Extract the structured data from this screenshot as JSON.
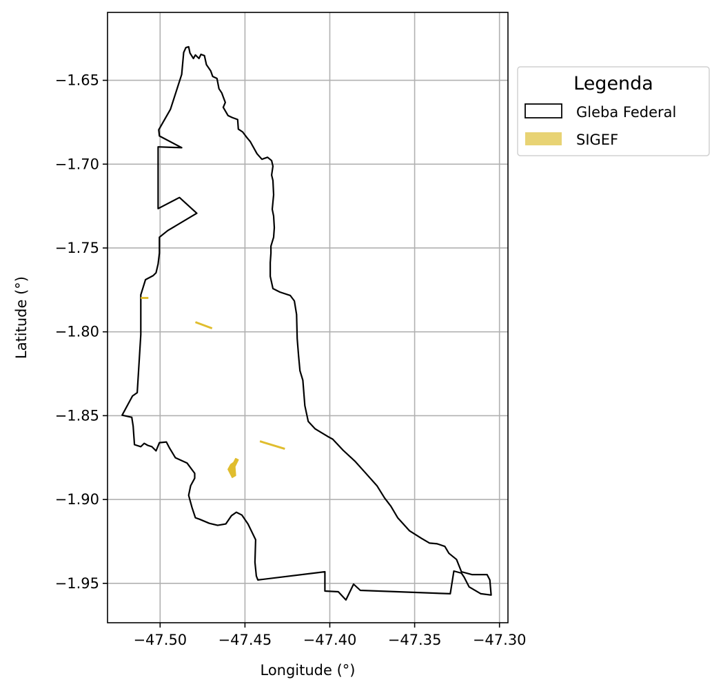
{
  "chart_data": {
    "type": "map",
    "xlabel": "Longitude (°)",
    "ylabel": "Latitude (°)",
    "xlim": [
      -47.531,
      -47.295
    ],
    "ylim": [
      -1.9735,
      -1.6095
    ],
    "xticks": [
      -47.5,
      -47.45,
      -47.4,
      -47.35,
      -47.3
    ],
    "xtick_labels": [
      "−47.50",
      "−47.45",
      "−47.40",
      "−47.35",
      "−47.30"
    ],
    "yticks": [
      -1.65,
      -1.7,
      -1.75,
      -1.8,
      -1.85,
      -1.9,
      -1.95
    ],
    "ytick_labels": [
      "−1.65",
      "−1.70",
      "−1.75",
      "−1.80",
      "−1.85",
      "−1.90",
      "−1.95"
    ],
    "grid": true,
    "legend": {
      "title": "Legenda",
      "placement": "outside-upper-right",
      "entries": [
        {
          "label": "Gleba Federal",
          "style": "outline",
          "color": "#000000"
        },
        {
          "label": "SIGEF",
          "style": "fill",
          "color": "#e8d374"
        }
      ]
    },
    "series": [
      {
        "name": "Gleba Federal",
        "kind": "polygon-outline",
        "color": "#000000",
        "points": [
          [
            -47.4861,
            -1.6334
          ],
          [
            -47.4848,
            -1.6305
          ],
          [
            -47.4832,
            -1.63
          ],
          [
            -47.4824,
            -1.6337
          ],
          [
            -47.4804,
            -1.637
          ],
          [
            -47.4792,
            -1.6349
          ],
          [
            -47.4771,
            -1.637
          ],
          [
            -47.4759,
            -1.6345
          ],
          [
            -47.4739,
            -1.6353
          ],
          [
            -47.4727,
            -1.6407
          ],
          [
            -47.4702,
            -1.6444
          ],
          [
            -47.469,
            -1.6477
          ],
          [
            -47.4665,
            -1.6489
          ],
          [
            -47.4653,
            -1.655
          ],
          [
            -47.4637,
            -1.6575
          ],
          [
            -47.4628,
            -1.6599
          ],
          [
            -47.4616,
            -1.6632
          ],
          [
            -47.4628,
            -1.6661
          ],
          [
            -47.46,
            -1.671
          ],
          [
            -47.4575,
            -1.6722
          ],
          [
            -47.4543,
            -1.6734
          ],
          [
            -47.4539,
            -1.6791
          ],
          [
            -47.4514,
            -1.6808
          ],
          [
            -47.449,
            -1.684
          ],
          [
            -47.4469,
            -1.6865
          ],
          [
            -47.4429,
            -1.6938
          ],
          [
            -47.44,
            -1.6971
          ],
          [
            -47.4367,
            -1.6959
          ],
          [
            -47.4343,
            -1.6979
          ],
          [
            -47.4335,
            -1.7012
          ],
          [
            -47.4343,
            -1.7065
          ],
          [
            -47.4335,
            -1.7098
          ],
          [
            -47.4331,
            -1.7183
          ],
          [
            -47.4339,
            -1.7269
          ],
          [
            -47.4331,
            -1.731
          ],
          [
            -47.4327,
            -1.7379
          ],
          [
            -47.4331,
            -1.7436
          ],
          [
            -47.4347,
            -1.7489
          ],
          [
            -47.4347,
            -1.753
          ],
          [
            -47.4351,
            -1.7587
          ],
          [
            -47.4351,
            -1.7669
          ],
          [
            -47.4335,
            -1.7742
          ],
          [
            -47.4294,
            -1.7763
          ],
          [
            -47.4233,
            -1.7783
          ],
          [
            -47.4209,
            -1.7816
          ],
          [
            -47.4196,
            -1.7897
          ],
          [
            -47.4192,
            -1.804
          ],
          [
            -47.4184,
            -1.8143
          ],
          [
            -47.4176,
            -1.8232
          ],
          [
            -47.4159,
            -1.8289
          ],
          [
            -47.4147,
            -1.844
          ],
          [
            -47.4127,
            -1.8534
          ],
          [
            -47.4086,
            -1.8579
          ],
          [
            -47.4045,
            -1.8604
          ],
          [
            -47.4012,
            -1.8624
          ],
          [
            -47.3983,
            -1.864
          ],
          [
            -47.3922,
            -1.8706
          ],
          [
            -47.3852,
            -1.8771
          ],
          [
            -47.3791,
            -1.884
          ],
          [
            -47.3722,
            -1.8918
          ],
          [
            -47.3677,
            -1.8991
          ],
          [
            -47.364,
            -1.904
          ],
          [
            -47.36,
            -1.9109
          ],
          [
            -47.353,
            -1.9187
          ],
          [
            -47.3461,
            -1.9231
          ],
          [
            -47.3412,
            -1.926
          ],
          [
            -47.3367,
            -1.9264
          ],
          [
            -47.3322,
            -1.928
          ],
          [
            -47.3298,
            -1.9321
          ],
          [
            -47.3253,
            -1.9358
          ],
          [
            -47.3224,
            -1.9431
          ],
          [
            -47.3163,
            -1.9448
          ],
          [
            -47.3073,
            -1.9448
          ],
          [
            -47.3057,
            -1.948
          ],
          [
            -47.3049,
            -1.957
          ],
          [
            -47.311,
            -1.9562
          ],
          [
            -47.3179,
            -1.9521
          ],
          [
            -47.3208,
            -1.9464
          ],
          [
            -47.3224,
            -1.9439
          ],
          [
            -47.3269,
            -1.9427
          ],
          [
            -47.329,
            -1.9562
          ],
          [
            -47.382,
            -1.9542
          ],
          [
            -47.386,
            -1.9505
          ],
          [
            -47.3905,
            -1.9599
          ],
          [
            -47.395,
            -1.955
          ],
          [
            -47.4029,
            -1.9546
          ],
          [
            -47.4029,
            -1.9431
          ],
          [
            -47.4424,
            -1.948
          ],
          [
            -47.4433,
            -1.9456
          ],
          [
            -47.4441,
            -1.9374
          ],
          [
            -47.4437,
            -1.924
          ],
          [
            -47.4482,
            -1.9146
          ],
          [
            -47.4518,
            -1.9093
          ],
          [
            -47.4551,
            -1.9076
          ],
          [
            -47.458,
            -1.9097
          ],
          [
            -47.4613,
            -1.9146
          ],
          [
            -47.4661,
            -1.9154
          ],
          [
            -47.471,
            -1.9142
          ],
          [
            -47.4767,
            -1.9118
          ],
          [
            -47.4792,
            -1.9109
          ],
          [
            -47.4812,
            -1.9048
          ],
          [
            -47.4832,
            -1.8975
          ],
          [
            -47.482,
            -1.8918
          ],
          [
            -47.4796,
            -1.8873
          ],
          [
            -47.4796,
            -1.8844
          ],
          [
            -47.4841,
            -1.8783
          ],
          [
            -47.491,
            -1.8751
          ],
          [
            -47.4947,
            -1.8689
          ],
          [
            -47.4963,
            -1.8657
          ],
          [
            -47.5004,
            -1.8661
          ],
          [
            -47.5024,
            -1.871
          ],
          [
            -47.5049,
            -1.8685
          ],
          [
            -47.5073,
            -1.8677
          ],
          [
            -47.5094,
            -1.8665
          ],
          [
            -47.5114,
            -1.8685
          ],
          [
            -47.5151,
            -1.8673
          ],
          [
            -47.5159,
            -1.8563
          ],
          [
            -47.5167,
            -1.851
          ],
          [
            -47.5224,
            -1.8497
          ],
          [
            -47.5163,
            -1.8383
          ],
          [
            -47.5135,
            -1.8363
          ],
          [
            -47.5114,
            -1.8016
          ],
          [
            -47.5114,
            -1.7779
          ],
          [
            -47.5086,
            -1.7689
          ],
          [
            -47.5041,
            -1.7665
          ],
          [
            -47.5024,
            -1.7648
          ],
          [
            -47.5012,
            -1.7595
          ],
          [
            -47.5004,
            -1.753
          ],
          [
            -47.5004,
            -1.7436
          ],
          [
            -47.4955,
            -1.7396
          ],
          [
            -47.4784,
            -1.7293
          ],
          [
            -47.4886,
            -1.7199
          ],
          [
            -47.5012,
            -1.7265
          ],
          [
            -47.5012,
            -1.6897
          ],
          [
            -47.4873,
            -1.6902
          ],
          [
            -47.5004,
            -1.6832
          ],
          [
            -47.5008,
            -1.6795
          ],
          [
            -47.4939,
            -1.6673
          ],
          [
            -47.4873,
            -1.6465
          ]
        ]
      },
      {
        "name": "SIGEF",
        "kind": "parcels",
        "color": "#e0bd2e",
        "parcels": [
          [
            [
              -47.5114,
              -1.7798
            ],
            [
              -47.5069,
              -1.7798
            ]
          ],
          [
            [
              -47.4792,
              -1.7942
            ],
            [
              -47.4694,
              -1.7979
            ]
          ],
          [
            [
              -47.4412,
              -1.8653
            ],
            [
              -47.4265,
              -1.8698
            ]
          ],
          [
            [
              -47.4555,
              -1.8755
            ],
            [
              -47.4539,
              -1.8763
            ],
            [
              -47.4559,
              -1.8804
            ],
            [
              -47.4555,
              -1.8857
            ],
            [
              -47.4575,
              -1.8869
            ],
            [
              -47.46,
              -1.882
            ],
            [
              -47.4584,
              -1.8791
            ],
            [
              -47.4567,
              -1.8779
            ]
          ]
        ]
      }
    ]
  }
}
